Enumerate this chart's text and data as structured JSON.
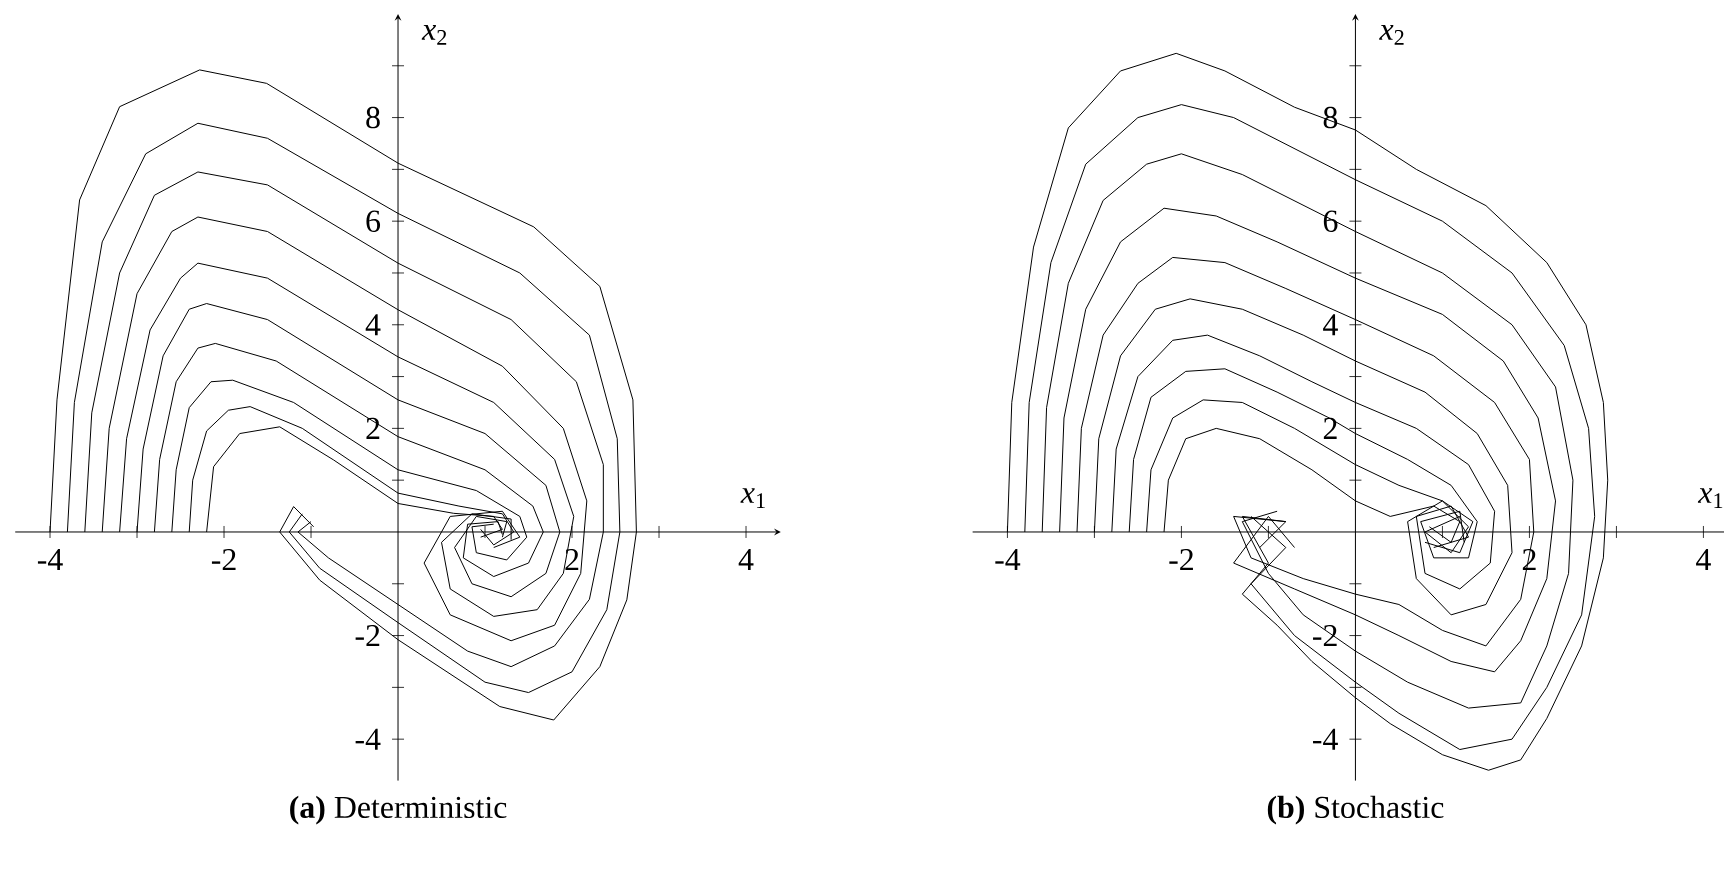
{
  "chart_data": [
    {
      "type": "line",
      "title": "**(a)** Deterministic",
      "xlabel": "*x*$_{1}$",
      "ylabel": "*x*$_{2}$",
      "line_style": "solid",
      "xlim": [
        -4.4,
        4.4
      ],
      "ylim": [
        -4.8,
        10
      ],
      "xticks": [
        -4,
        {
          "value": -3,
          "label": null
        },
        -2,
        {
          "value": -1,
          "label": null
        },
        {
          "value": 1,
          "label": null
        },
        2,
        {
          "value": 3,
          "label": null
        },
        4
      ],
      "yticks": [
        -4,
        {
          "value": -3,
          "label": null
        },
        -2,
        {
          "value": -1,
          "label": null
        },
        {
          "value": 1,
          "label": null
        },
        2,
        {
          "value": 3,
          "label": null
        },
        4,
        {
          "value": 5,
          "label": null
        },
        6,
        {
          "value": 7,
          "label": null
        },
        8,
        {
          "value": 9,
          "label": null
        }
      ],
      "series": [
        {
          "color": "#000000",
          "x": [
            -4,
            -3.92,
            -3.66,
            -3.2,
            -2.28,
            -1.51,
            0,
            1.56,
            2.32,
            2.7,
            2.74,
            2.63,
            2.32,
            1.79,
            1.17,
            0,
            -0.9,
            -1.36,
            -1.2,
            -0.97
          ],
          "values": [
            0,
            2.55,
            6.41,
            8.21,
            8.92,
            8.66,
            7.12,
            5.89,
            4.74,
            2.55,
            0,
            -1.31,
            -2.6,
            -3.63,
            -3.37,
            -2.08,
            -0.93,
            0,
            0.49,
            0.1
          ]
        },
        {
          "color": "#000000",
          "x": [
            -3.8,
            -3.72,
            -3.4,
            -2.9,
            -2.3,
            -1.5,
            0,
            1.4,
            2.2,
            2.52,
            2.55,
            2.4,
            2.0,
            1.5,
            1.0,
            0,
            -0.9,
            -1.25,
            -1.1
          ],
          "values": [
            0,
            2.5,
            5.6,
            7.3,
            7.89,
            7.6,
            6.15,
            5.0,
            3.8,
            1.8,
            0,
            -1.5,
            -2.7,
            -3.1,
            -2.9,
            -1.75,
            -0.7,
            0,
            0.35
          ]
        },
        {
          "color": "#000000",
          "x": [
            -3.6,
            -3.52,
            -3.2,
            -2.8,
            -2.3,
            -1.5,
            0,
            1.3,
            2.05,
            2.36,
            2.36,
            2.2,
            1.8,
            1.3,
            0.8,
            0,
            -0.8,
            -1.15,
            -1.0
          ],
          "values": [
            0,
            2.3,
            5.0,
            6.5,
            6.95,
            6.7,
            5.19,
            4.1,
            2.9,
            1.3,
            0,
            -1.3,
            -2.2,
            -2.6,
            -2.3,
            -1.4,
            -0.5,
            0,
            0.2
          ]
        },
        {
          "color": "#000000",
          "x": [
            -3.4,
            -3.32,
            -3.0,
            -2.6,
            -2.3,
            -1.5,
            0,
            1.2,
            1.9,
            2.17,
            2.1,
            1.8,
            1.3,
            0.6,
            0.3,
            0.6,
            1.2,
            1.4,
            1.1
          ],
          "values": [
            0,
            2.0,
            4.6,
            5.8,
            6.08,
            5.8,
            4.29,
            3.2,
            2.0,
            0.6,
            -0.8,
            -1.8,
            -2.1,
            -1.6,
            -0.6,
            0.3,
            0.4,
            -0.1,
            -0.3
          ]
        },
        {
          "color": "#000000",
          "x": [
            -3.2,
            -3.12,
            -2.85,
            -2.5,
            -2.3,
            -1.5,
            0,
            1.1,
            1.8,
            2.02,
            1.9,
            1.6,
            1.1,
            0.6,
            0.5,
            0.85,
            1.3,
            1.3
          ],
          "values": [
            0,
            1.8,
            3.9,
            4.9,
            5.19,
            4.9,
            3.38,
            2.5,
            1.4,
            0.3,
            -0.8,
            -1.5,
            -1.63,
            -1.1,
            -0.2,
            0.35,
            0.25,
            -0.15
          ]
        },
        {
          "color": "#000000",
          "x": [
            -3.0,
            -2.93,
            -2.7,
            -2.4,
            -2.2,
            -1.5,
            0,
            1.0,
            1.7,
            1.86,
            1.7,
            1.3,
            0.85,
            0.65,
            0.9,
            1.25,
            1.2
          ],
          "values": [
            0,
            1.6,
            3.4,
            4.3,
            4.41,
            4.1,
            2.55,
            1.9,
            0.9,
            0,
            -0.8,
            -1.25,
            -1.0,
            -0.3,
            0.3,
            0.2,
            -0.1
          ]
        },
        {
          "color": "#000000",
          "x": [
            -2.8,
            -2.74,
            -2.55,
            -2.3,
            -2.1,
            -1.4,
            0,
            1.0,
            1.55,
            1.67,
            1.5,
            1.1,
            0.75,
            0.8,
            1.15,
            1.2
          ],
          "values": [
            0,
            1.4,
            2.9,
            3.55,
            3.64,
            3.3,
            1.84,
            1.2,
            0.5,
            0,
            -0.6,
            -0.86,
            -0.5,
            0.15,
            0.2,
            -0.05
          ]
        },
        {
          "color": "#000000",
          "x": [
            -2.6,
            -2.55,
            -2.4,
            -2.15,
            -1.9,
            -1.2,
            0,
            0.9,
            1.4,
            1.48,
            1.25,
            0.9,
            0.85,
            1.1
          ],
          "values": [
            0,
            1.2,
            2.4,
            2.9,
            2.93,
            2.5,
            1.2,
            0.8,
            0.3,
            -0.1,
            -0.54,
            -0.4,
            0.1,
            0.15
          ]
        },
        {
          "color": "#000000",
          "x": [
            -2.4,
            -2.36,
            -2.2,
            -1.95,
            -1.7,
            -1.1,
            0,
            0.7,
            1.2,
            1.33,
            1.1,
            0.95
          ],
          "values": [
            0,
            1.0,
            1.95,
            2.35,
            2.42,
            2.0,
            0.75,
            0.5,
            0.35,
            0,
            -0.25,
            0.05
          ]
        },
        {
          "color": "#000000",
          "x": [
            -2.2,
            -2.12,
            -1.82,
            -1.36,
            -0.74,
            0,
            0.64,
            1.1,
            1.2,
            0.95
          ],
          "values": [
            0,
            1.26,
            1.9,
            2.03,
            1.39,
            0.55,
            0.36,
            0.3,
            0.05,
            -0.1
          ]
        }
      ]
    },
    {
      "type": "line",
      "title": "**(b)** Stochastic",
      "xlabel": "*x*$_{1}$",
      "ylabel": "*x*$_{2}$",
      "line_style": "solid",
      "xlim": [
        -4.4,
        4.4
      ],
      "ylim": [
        -4.8,
        10
      ],
      "xticks": [
        -4,
        {
          "value": -3,
          "label": null
        },
        -2,
        {
          "value": -1,
          "label": null
        },
        {
          "value": 1,
          "label": null
        },
        2,
        {
          "value": 3,
          "label": null
        },
        4
      ],
      "yticks": [
        -4,
        {
          "value": -3,
          "label": null
        },
        -2,
        {
          "value": -1,
          "label": null
        },
        {
          "value": 1,
          "label": null
        },
        2,
        {
          "value": 3,
          "label": null
        },
        4,
        {
          "value": 5,
          "label": null
        },
        6,
        {
          "value": 7,
          "label": null
        },
        8,
        {
          "value": 9,
          "label": null
        }
      ],
      "series": [
        {
          "color": "#000000",
          "x": [
            -4,
            -3.95,
            -3.7,
            -3.3,
            -2.7,
            -2.06,
            -1.5,
            -0.7,
            0,
            0.7,
            1.5,
            2.2,
            2.65,
            2.85,
            2.9,
            2.85,
            2.6,
            2.2,
            1.9,
            1.53,
            1.0,
            0.4,
            0,
            -0.5,
            -0.9,
            -1.3,
            -1.0,
            -1.3,
            -0.8,
            -1.1
          ],
          "values": [
            0,
            2.5,
            5.5,
            7.8,
            8.9,
            9.24,
            8.9,
            8.2,
            7.76,
            7.0,
            6.3,
            5.2,
            4.0,
            2.5,
            1.0,
            -0.5,
            -2.2,
            -3.6,
            -4.4,
            -4.6,
            -4.3,
            -3.7,
            -3.2,
            -2.5,
            -1.8,
            -1.2,
            -0.6,
            0.3,
            0.2,
            -0.3
          ]
        },
        {
          "color": "#000000",
          "x": [
            -3.8,
            -3.75,
            -3.5,
            -3.1,
            -2.5,
            -2.0,
            -1.4,
            0,
            1.0,
            1.8,
            2.4,
            2.68,
            2.75,
            2.6,
            2.2,
            1.8,
            1.2,
            0.5,
            0,
            -0.7,
            -1.2,
            -0.8,
            -1.2
          ],
          "values": [
            0,
            2.5,
            5.2,
            7.1,
            8.0,
            8.25,
            8.0,
            6.8,
            6.0,
            5.0,
            3.6,
            2.0,
            0.3,
            -1.6,
            -3.0,
            -4.0,
            -4.2,
            -3.5,
            -2.9,
            -2.0,
            -1.0,
            -0.3,
            0.3
          ]
        },
        {
          "color": "#000000",
          "x": [
            -3.6,
            -3.55,
            -3.3,
            -2.9,
            -2.4,
            -2.0,
            -1.3,
            0,
            1.0,
            1.8,
            2.3,
            2.5,
            2.45,
            2.2,
            1.9,
            1.3,
            0.6,
            0,
            -0.6,
            -1.0,
            -1.3,
            -0.9
          ],
          "values": [
            0,
            2.4,
            4.8,
            6.4,
            7.1,
            7.3,
            6.9,
            5.8,
            5.0,
            4.0,
            2.8,
            1.0,
            -0.8,
            -2.2,
            -3.3,
            -3.4,
            -2.9,
            -2.3,
            -1.6,
            -0.8,
            0.2,
            0.4
          ]
        },
        {
          "color": "#000000",
          "x": [
            -3.4,
            -3.35,
            -3.1,
            -2.7,
            -2.2,
            -1.6,
            -0.9,
            0,
            1.0,
            1.7,
            2.1,
            2.3,
            2.2,
            1.9,
            1.6,
            1.1,
            0.5,
            0,
            -0.7,
            -1.4,
            -1.0,
            -0.7
          ],
          "values": [
            0,
            2.2,
            4.3,
            5.6,
            6.25,
            6.1,
            5.6,
            4.9,
            4.2,
            3.3,
            2.2,
            0.6,
            -0.9,
            -2.1,
            -2.7,
            -2.5,
            -2.0,
            -1.6,
            -1.1,
            -0.6,
            0.3,
            -0.3
          ]
        },
        {
          "color": "#000000",
          "x": [
            -3.2,
            -3.15,
            -2.9,
            -2.5,
            -2.1,
            -1.5,
            -0.8,
            0,
            0.9,
            1.6,
            2.0,
            2.05,
            1.9,
            1.5,
            1.0,
            0.5,
            0,
            -0.6,
            -1.2,
            -1.4,
            -0.8
          ],
          "values": [
            0,
            2.0,
            3.8,
            4.8,
            5.3,
            5.2,
            4.7,
            4.1,
            3.4,
            2.5,
            1.4,
            0,
            -1.3,
            -2.2,
            -1.9,
            -1.4,
            -1.2,
            -0.9,
            -0.5,
            0.3,
            0.2
          ]
        },
        {
          "color": "#000000",
          "x": [
            -3.0,
            -2.95,
            -2.7,
            -2.3,
            -1.9,
            -1.3,
            -0.6,
            0,
            0.8,
            1.4,
            1.75,
            1.8,
            1.5,
            1.1,
            0.7,
            0.6,
            1.0,
            1.35,
            1.2,
            0.8
          ],
          "values": [
            0,
            1.8,
            3.4,
            4.3,
            4.5,
            4.3,
            3.8,
            3.3,
            2.7,
            1.9,
            0.9,
            -0.4,
            -1.4,
            -1.6,
            -0.9,
            0.2,
            0.6,
            0.2,
            -0.4,
            -0.2
          ]
        },
        {
          "color": "#000000",
          "x": [
            -2.8,
            -2.75,
            -2.5,
            -2.1,
            -1.7,
            -1.1,
            -0.5,
            0,
            0.7,
            1.3,
            1.6,
            1.55,
            1.2,
            0.8,
            0.7,
            1.1,
            1.3,
            0.9
          ],
          "values": [
            0,
            1.6,
            3.0,
            3.7,
            3.8,
            3.4,
            2.9,
            2.5,
            2.0,
            1.3,
            0.4,
            -0.6,
            -1.1,
            -0.8,
            0.3,
            0.5,
            -0.1,
            -0.3
          ]
        },
        {
          "color": "#000000",
          "x": [
            -2.6,
            -2.55,
            -2.35,
            -1.95,
            -1.5,
            -0.9,
            -0.3,
            0,
            0.6,
            1.1,
            1.4,
            1.3,
            0.9,
            0.75,
            1.2,
            1.25
          ],
          "values": [
            0,
            1.4,
            2.6,
            3.1,
            3.15,
            2.7,
            2.2,
            1.9,
            1.4,
            0.9,
            0.2,
            -0.5,
            -0.5,
            0.2,
            0.4,
            -0.2
          ]
        },
        {
          "color": "#000000",
          "x": [
            -2.4,
            -2.35,
            -2.1,
            -1.75,
            -1.3,
            -0.7,
            0,
            0.5,
            1.0,
            1.3,
            1.1,
            0.8,
            1.2
          ],
          "values": [
            0,
            1.2,
            2.2,
            2.55,
            2.5,
            2.0,
            1.3,
            0.9,
            0.6,
            0.1,
            -0.4,
            0.0,
            0.3
          ]
        },
        {
          "color": "#000000",
          "x": [
            -2.2,
            -2.15,
            -1.95,
            -1.6,
            -1.1,
            -0.5,
            0,
            0.4,
            0.9,
            1.2,
            1.1,
            0.85
          ],
          "values": [
            0,
            1.0,
            1.8,
            2.0,
            1.8,
            1.2,
            0.6,
            0.3,
            0.5,
            0.2,
            -0.2,
            0.1
          ]
        }
      ]
    }
  ]
}
